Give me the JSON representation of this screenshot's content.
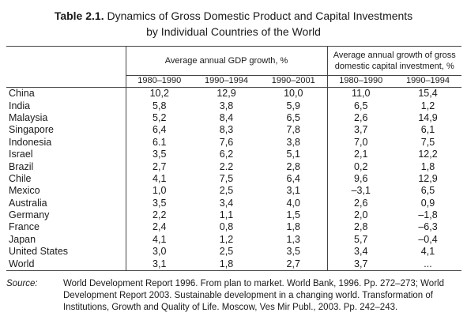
{
  "title": {
    "label": "Table 2.1.",
    "line1": "Dynamics of Gross Domestic Product and Capital Investments",
    "line2": "by Individual Countries of the World"
  },
  "table": {
    "group_headers": [
      "Average annual GDP growth, %",
      "Average annual growth of gross domestic capital investment, %"
    ],
    "sub_headers": [
      "1980–1990",
      "1990–1994",
      "1990–2001",
      "1980–1990",
      "1990–1994"
    ],
    "rows": [
      {
        "country": "China",
        "values": [
          "10,2",
          "12,9",
          "10,0",
          "11,0",
          "15,4"
        ]
      },
      {
        "country": "India",
        "values": [
          "5,8",
          "3,8",
          "5,9",
          "6,5",
          "1,2"
        ]
      },
      {
        "country": "Malaysia",
        "values": [
          "5,2",
          "8,4",
          "6,5",
          "2,6",
          "14,9"
        ]
      },
      {
        "country": "Singapore",
        "values": [
          "6,4",
          "8,3",
          "7,8",
          "3,7",
          "6,1"
        ]
      },
      {
        "country": "Indonesia",
        "values": [
          "6.1",
          "7,6",
          "3,8",
          "7,0",
          "7,5"
        ]
      },
      {
        "country": "Israel",
        "values": [
          "3,5",
          "6,2",
          "5,1",
          "2,1",
          "12,2"
        ]
      },
      {
        "country": "Brazil",
        "values": [
          "2,7",
          "2.2",
          "2,8",
          "0,2",
          "1,8"
        ]
      },
      {
        "country": "Chile",
        "values": [
          "4,1",
          "7,5",
          "6,4",
          "9,6",
          "12,9"
        ]
      },
      {
        "country": "Mexico",
        "values": [
          "1,0",
          "2,5",
          "3,1",
          "–3,1",
          "6,5"
        ]
      },
      {
        "country": "Australia",
        "values": [
          "3,5",
          "3,4",
          "4,0",
          "2,6",
          "0,9"
        ]
      },
      {
        "country": "Germany",
        "values": [
          "2,2",
          "1,1",
          "1,5",
          "2,0",
          "–1,8"
        ]
      },
      {
        "country": "France",
        "values": [
          "2,4",
          "0,8",
          "1,8",
          "2,8",
          "–6,3"
        ]
      },
      {
        "country": "Japan",
        "values": [
          "4,1",
          "1,2",
          "1,3",
          "5,7",
          "–0,4"
        ]
      },
      {
        "country": "United States",
        "values": [
          "3,0",
          "2,5",
          "3,5",
          "3,4",
          "4,1"
        ]
      },
      {
        "country": "World",
        "values": [
          "3,1",
          "1,8",
          "2,7",
          "3,7",
          "..."
        ]
      }
    ]
  },
  "source": {
    "label": "Source:",
    "text": "World Development Report 1996. From plan to market. World Bank, 1996. Pp. 272–273; World Development Report 2003. Sustainable development in a changing world. Transformation of Institutions, Growth and Quality of Life. Moscow, Ves Mir Publ., 2003. Pp. 242–243."
  }
}
